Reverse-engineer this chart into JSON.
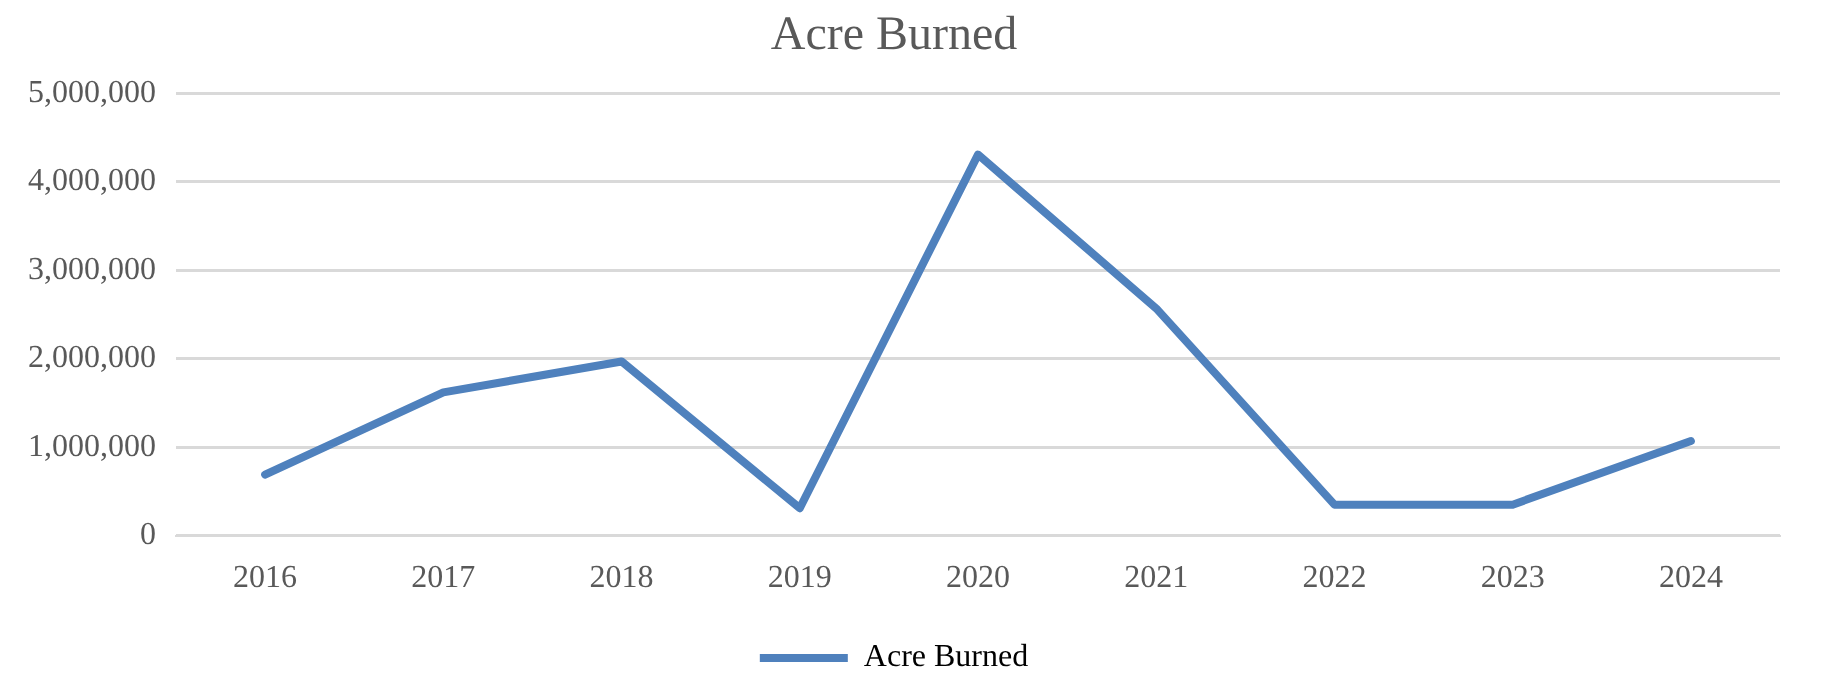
{
  "chart_data": {
    "type": "line",
    "title": "Acre Burned",
    "categories": [
      "2016",
      "2017",
      "2018",
      "2019",
      "2020",
      "2021",
      "2022",
      "2023",
      "2024"
    ],
    "series": [
      {
        "name": "Acre Burned",
        "color": "#4f81bd",
        "values": [
          690000,
          1620000,
          1970000,
          310000,
          4310000,
          2570000,
          350000,
          350000,
          1070000
        ]
      }
    ],
    "ylim": [
      0,
      5000000
    ],
    "yticks": [
      0,
      {
        "value": 1000000,
        "label": "1,000,000"
      },
      {
        "value": 2000000,
        "label": "2,000,000"
      },
      {
        "value": 3000000,
        "label": "3,000,000"
      },
      {
        "value": 4000000,
        "label": "4,000,000"
      },
      {
        "value": 5000000,
        "label": "5,000,000"
      }
    ],
    "grid": "y",
    "legend": "bottom",
    "marker": "none",
    "line_style": "solid"
  }
}
